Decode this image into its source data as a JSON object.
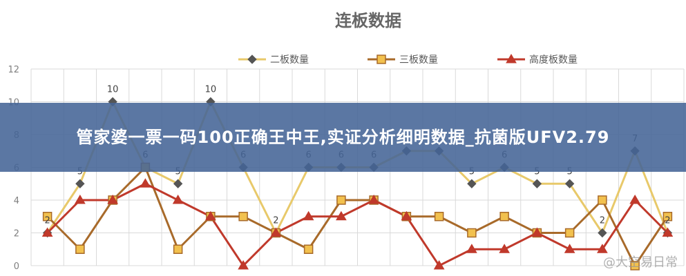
{
  "chart_data": {
    "type": "line",
    "title": "连板数据",
    "xlabel": "",
    "ylabel": "",
    "ylim": [
      0,
      12
    ],
    "yticks": [
      "0",
      "2",
      "4",
      "6",
      "8",
      "10",
      "12"
    ],
    "grid": true,
    "legend_position": "top",
    "series": [
      {
        "name": "二板数量",
        "color": "#e8c96a",
        "marker": "diamond",
        "values": [
          2,
          5,
          10,
          6,
          5,
          10,
          6,
          2,
          6,
          6,
          6,
          7,
          7,
          5,
          6,
          5,
          5,
          2,
          7,
          2
        ]
      },
      {
        "name": "三板数量",
        "color": "#a86a2a",
        "marker": "square",
        "values": [
          3,
          1,
          4,
          6,
          1,
          3,
          3,
          2,
          1,
          4,
          4,
          3,
          3,
          2,
          3,
          2,
          2,
          4,
          0,
          3
        ]
      },
      {
        "name": "高度板数量",
        "color": "#c0392b",
        "marker": "triangle",
        "values": [
          2,
          4,
          4,
          5,
          4,
          3,
          0,
          2,
          3,
          3,
          4,
          3,
          0,
          1,
          1,
          2,
          1,
          1,
          4,
          2
        ]
      }
    ],
    "data_labels": [
      2,
      5,
      10,
      6,
      5,
      10,
      6,
      2,
      6,
      6,
      6,
      7,
      7,
      5,
      6,
      5,
      5,
      2,
      7,
      2
    ]
  },
  "colors": {
    "title": "#666666",
    "axis_text": "#7f7f7f",
    "grid": "#d9d9d9",
    "marker_fill": "#f2c14e",
    "marker_edge": "#a86a2a"
  },
  "banner": {
    "text": "管家婆一票一码100正确王中王,实证分析细明数据_抗菌版UFV2.79"
  },
  "watermark": {
    "text": "@大空易日常"
  }
}
